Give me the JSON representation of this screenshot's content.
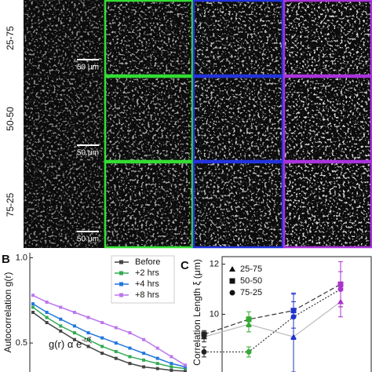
{
  "figure": {
    "row_labels": [
      "25-75",
      "50-50",
      "75-25"
    ],
    "scale_bar_labels": [
      "50 μm",
      "50 μm",
      "50 μm"
    ],
    "column_colors": [
      "#111111",
      "#33dd33",
      "#2233dd",
      "#aa33dd"
    ],
    "panel_labels": [
      "B",
      "C"
    ]
  },
  "chart_data": [
    {
      "type": "line",
      "ylabel": "Autocorrelation g(r)",
      "annotation": {
        "text": "g(r) α e",
        "superscript": "-r/ξ"
      },
      "ylim": [
        0.33,
        1.03
      ],
      "yticks": [
        {
          "value": 1.0,
          "label": "1.0"
        },
        {
          "value": 0.5,
          "label": "0.5"
        }
      ],
      "legend": "upper right",
      "series": [
        {
          "name": "Before",
          "color": "#444444",
          "values": [
            0.68,
            0.62,
            0.57,
            0.52,
            0.48,
            0.44,
            0.41,
            0.38,
            0.36,
            0.35,
            0.34,
            0.335
          ]
        },
        {
          "name": "+2 hrs",
          "color": "#33aa55",
          "values": [
            0.71,
            0.65,
            0.6,
            0.56,
            0.52,
            0.48,
            0.45,
            0.42,
            0.4,
            0.38,
            0.36,
            0.35
          ]
        },
        {
          "name": "+4 hrs",
          "color": "#2277dd",
          "values": [
            0.73,
            0.68,
            0.64,
            0.6,
            0.56,
            0.53,
            0.5,
            0.47,
            0.44,
            0.41,
            0.38,
            0.36
          ]
        },
        {
          "name": "+8 hrs",
          "color": "#bb77ee",
          "values": [
            0.78,
            0.74,
            0.71,
            0.68,
            0.65,
            0.62,
            0.59,
            0.56,
            0.52,
            0.47,
            0.42,
            0.37
          ]
        }
      ]
    },
    {
      "type": "scatter",
      "ylabel": "Correlation Length ξ (μm)",
      "ylim": [
        7.7,
        12.3
      ],
      "yticks": [
        10,
        12
      ],
      "legend": "upper left",
      "point_colors": [
        "#222222",
        "#33aa33",
        "#2233cc",
        "#aa33cc"
      ],
      "series": [
        {
          "name": "25-75",
          "marker": "triangle",
          "line": "solid",
          "values": [
            9.1,
            9.6,
            9.1,
            10.5
          ],
          "errors": [
            0.2,
            0.3,
            1.4,
            0.6
          ]
        },
        {
          "name": "50-50",
          "marker": "square",
          "line": "dashed",
          "values": [
            9.2,
            9.8,
            10.15,
            11.2
          ],
          "errors": [
            0.15,
            0.3,
            0.7,
            0.9
          ]
        },
        {
          "name": "75-25",
          "marker": "circle",
          "line": "dotted",
          "values": [
            8.5,
            8.5,
            9.9,
            11.0
          ],
          "errors": [
            0.2,
            0.2,
            0.9,
            0.7
          ]
        }
      ]
    }
  ]
}
